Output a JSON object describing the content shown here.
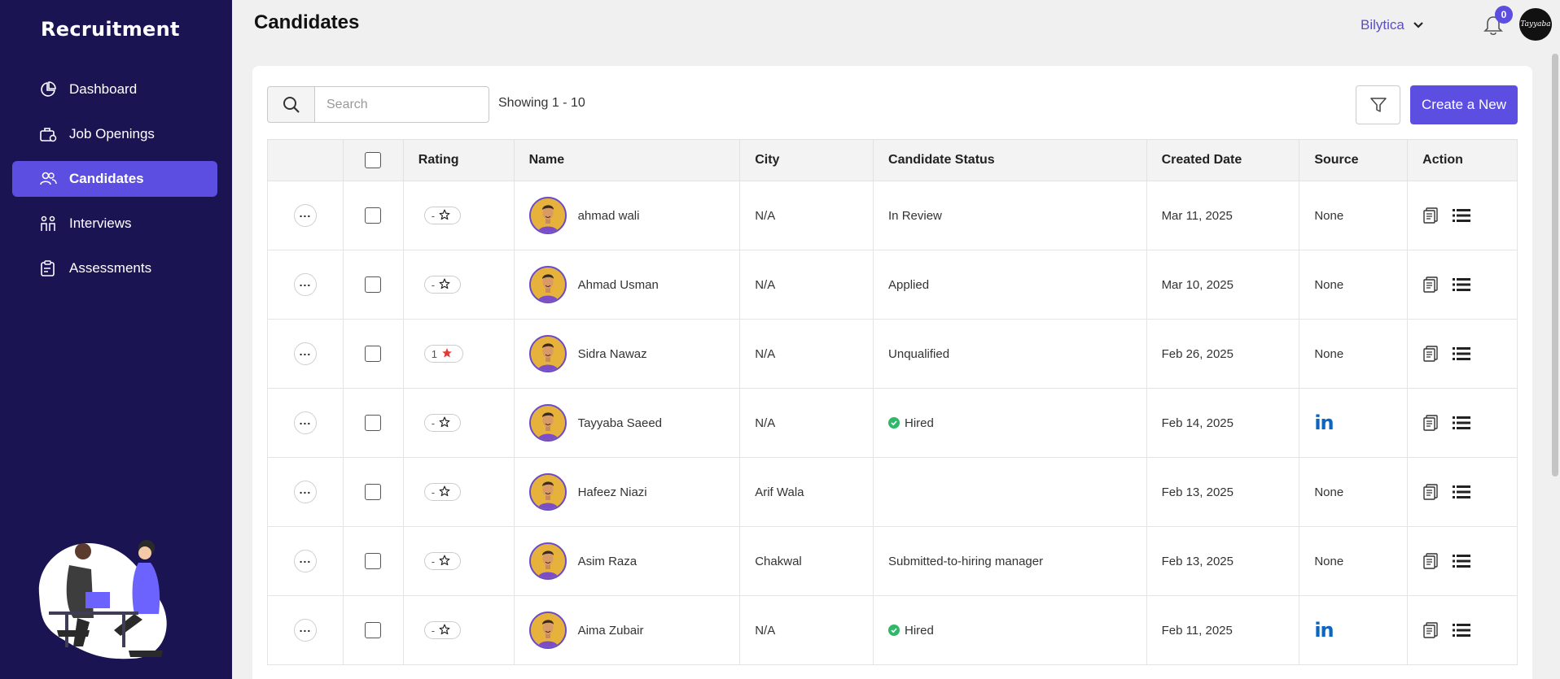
{
  "sidebar": {
    "brand": "Recruitment",
    "items": [
      {
        "label": "Dashboard",
        "icon": "dashboard-icon",
        "active": false
      },
      {
        "label": "Job Openings",
        "icon": "briefcase-icon",
        "active": false
      },
      {
        "label": "Candidates",
        "icon": "users-icon",
        "active": true
      },
      {
        "label": "Interviews",
        "icon": "interview-icon",
        "active": false
      },
      {
        "label": "Assessments",
        "icon": "clipboard-icon",
        "active": false
      }
    ]
  },
  "header": {
    "title": "Candidates",
    "org_name": "Bilytica",
    "notification_count": "0",
    "user_signature": "Tayyaba"
  },
  "toolbar": {
    "search_placeholder": "Search",
    "showing_text": "Showing 1 - 10",
    "create_label": "Create a New"
  },
  "table": {
    "columns": [
      "",
      "",
      "Rating",
      "Name",
      "City",
      "Candidate Status",
      "Created Date",
      "Source",
      "Action"
    ],
    "rows": [
      {
        "rating": "-",
        "rated": false,
        "name": "ahmad wali",
        "city": "N/A",
        "status": "In Review",
        "hired": false,
        "date": "Mar 11, 2025",
        "source": "None",
        "linkedin": false
      },
      {
        "rating": "-",
        "rated": false,
        "name": "Ahmad Usman",
        "city": "N/A",
        "status": "Applied",
        "hired": false,
        "date": "Mar 10, 2025",
        "source": "None",
        "linkedin": false
      },
      {
        "rating": "1",
        "rated": true,
        "name": "Sidra Nawaz",
        "city": "N/A",
        "status": "Unqualified",
        "hired": false,
        "date": "Feb 26, 2025",
        "source": "None",
        "linkedin": false
      },
      {
        "rating": "-",
        "rated": false,
        "name": "Tayyaba Saeed",
        "city": "N/A",
        "status": "Hired",
        "hired": true,
        "date": "Feb 14, 2025",
        "source": "in",
        "linkedin": true
      },
      {
        "rating": "-",
        "rated": false,
        "name": "Hafeez Niazi",
        "city": "Arif Wala",
        "status": "",
        "hired": false,
        "date": "Feb 13, 2025",
        "source": "None",
        "linkedin": false
      },
      {
        "rating": "-",
        "rated": false,
        "name": "Asim Raza",
        "city": "Chakwal",
        "status": "Submitted-to-hiring manager",
        "hired": false,
        "date": "Feb 13, 2025",
        "source": "None",
        "linkedin": false
      },
      {
        "rating": "-",
        "rated": false,
        "name": "Aima Zubair",
        "city": "N/A",
        "status": "Hired",
        "hired": true,
        "date": "Feb 11, 2025",
        "source": "in",
        "linkedin": true
      }
    ]
  },
  "colors": {
    "sidebar_bg": "#1b1452",
    "accent": "#5b4ee0",
    "linkedin": "#0a66c2",
    "hired_green": "#2fb86a",
    "star_red": "#e53935"
  }
}
